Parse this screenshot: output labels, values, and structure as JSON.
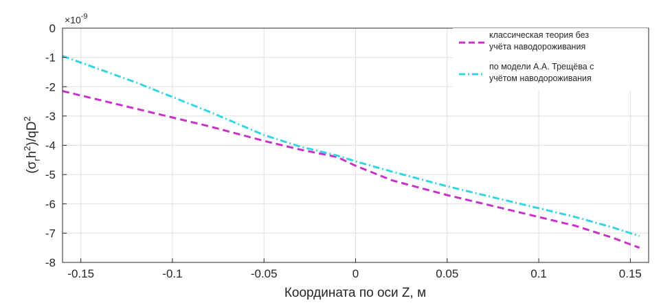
{
  "chart_data": {
    "type": "line",
    "exponent_label": "×10",
    "exponent_power": "-9",
    "xlabel": "Координата по оси Z, м",
    "ylabel_parts": [
      "(σ",
      "r",
      "h",
      "2",
      ")/qD",
      "2"
    ],
    "xlim": [
      -0.16,
      0.16
    ],
    "ylim": [
      -8,
      0
    ],
    "xticks": [
      -0.15,
      -0.1,
      -0.05,
      0,
      0.05,
      0.1,
      0.15
    ],
    "xtick_labels": [
      "-0.15",
      "-0.1",
      "-0.05",
      "0",
      "0.05",
      "0.1",
      "0.15"
    ],
    "yticks": [
      0,
      -1,
      -2,
      -3,
      -4,
      -5,
      -6,
      -7,
      -8
    ],
    "ytick_labels": [
      "0",
      "-1",
      "-2",
      "-3",
      "-4",
      "-5",
      "-6",
      "-7",
      "-8"
    ],
    "grid": true,
    "legend_position": "top-right",
    "series": [
      {
        "name_lines": [
          "классическая теория без",
          "учёта наводороживания"
        ],
        "color": "#C832C8",
        "dash": "dashed",
        "x": [
          -0.16,
          -0.12,
          -0.08,
          -0.05,
          -0.03,
          -0.01,
          0.0,
          0.02,
          0.05,
          0.08,
          0.1,
          0.12,
          0.14,
          0.155
        ],
        "y": [
          -2.15,
          -2.75,
          -3.35,
          -3.85,
          -4.15,
          -4.4,
          -4.7,
          -5.2,
          -5.7,
          -6.15,
          -6.45,
          -6.75,
          -7.15,
          -7.5
        ]
      },
      {
        "name_lines": [
          "по модели А.А. Трещёва с",
          "учётом наводороживания"
        ],
        "color": "#33D6E0",
        "dash": "dashdot",
        "x": [
          -0.16,
          -0.12,
          -0.08,
          -0.05,
          -0.03,
          -0.01,
          0.0,
          0.02,
          0.05,
          0.08,
          0.1,
          0.12,
          0.14,
          0.155
        ],
        "y": [
          -0.95,
          -1.85,
          -2.85,
          -3.65,
          -4.05,
          -4.35,
          -4.55,
          -4.9,
          -5.4,
          -5.85,
          -6.15,
          -6.45,
          -6.8,
          -7.1
        ]
      }
    ]
  }
}
